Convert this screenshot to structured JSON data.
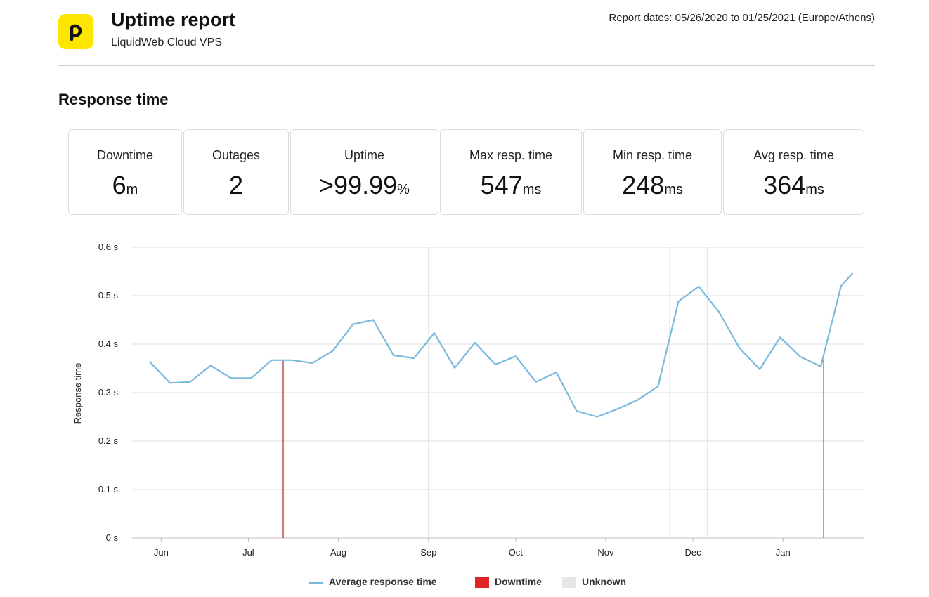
{
  "header": {
    "title": "Uptime report",
    "subtitle": "LiquidWeb Cloud VPS",
    "report_dates": "Report dates: 05/26/2020 to 01/25/2021 (Europe/Athens)",
    "logo_icon": "p-logo-icon",
    "logo_color": "#ffe600"
  },
  "section": {
    "title": "Response time"
  },
  "stats": [
    {
      "label": "Downtime",
      "value": "6",
      "unit": "m"
    },
    {
      "label": "Outages",
      "value": "2",
      "unit": ""
    },
    {
      "label": "Uptime",
      "value": ">99.99",
      "unit": "%"
    },
    {
      "label": "Max resp. time",
      "value": "547",
      "unit": "ms"
    },
    {
      "label": "Min resp. time",
      "value": "248",
      "unit": "ms"
    },
    {
      "label": "Avg resp. time",
      "value": "364",
      "unit": "ms"
    }
  ],
  "chart_data": {
    "type": "line",
    "xlabel": "",
    "ylabel": "Response time",
    "xlim": [
      "2020-05-26",
      "2021-01-25"
    ],
    "ylim": [
      0,
      0.6
    ],
    "yticks": [
      0,
      0.1,
      0.2,
      0.3,
      0.4,
      0.5,
      0.6
    ],
    "yticks_labels": [
      "0 s",
      "0.1 s",
      "0.2 s",
      "0.3 s",
      "0.4 s",
      "0.5 s",
      "0.6 s"
    ],
    "xticks": [
      "Jun",
      "Jul",
      "Aug",
      "Sep",
      "Oct",
      "Nov",
      "Dec",
      "Jan"
    ],
    "xtick_dates": [
      "2020-06-01",
      "2020-07-01",
      "2020-08-01",
      "2020-09-01",
      "2020-10-01",
      "2020-11-01",
      "2020-12-01",
      "2021-01-01"
    ],
    "grid": true,
    "legend_position": "bottom",
    "series": [
      {
        "name": "Average response time",
        "color": "#7ab9dd",
        "x": [
          "2020-05-28",
          "2020-06-04",
          "2020-06-11",
          "2020-06-18",
          "2020-06-25",
          "2020-07-02",
          "2020-07-09",
          "2020-07-16",
          "2020-07-23",
          "2020-07-30",
          "2020-08-06",
          "2020-08-13",
          "2020-08-20",
          "2020-08-27",
          "2020-09-03",
          "2020-09-10",
          "2020-09-17",
          "2020-09-24",
          "2020-10-01",
          "2020-10-08",
          "2020-10-15",
          "2020-10-22",
          "2020-10-29",
          "2020-11-05",
          "2020-11-12",
          "2020-11-19",
          "2020-11-26",
          "2020-12-03",
          "2020-12-10",
          "2020-12-17",
          "2020-12-24",
          "2020-12-31",
          "2021-01-07",
          "2021-01-14",
          "2021-01-21",
          "2021-01-25"
        ],
        "y": [
          0.364,
          0.32,
          0.322,
          0.356,
          0.33,
          0.33,
          0.367,
          0.367,
          0.361,
          0.386,
          0.441,
          0.45,
          0.377,
          0.371,
          0.423,
          0.351,
          0.403,
          0.358,
          0.375,
          0.322,
          0.342,
          0.262,
          0.25,
          0.266,
          0.285,
          0.313,
          0.488,
          0.519,
          0.466,
          0.392,
          0.348,
          0.414,
          0.374,
          0.354,
          0.52,
          0.547
        ]
      },
      {
        "name": "Downtime",
        "color": "#e02424",
        "x": [
          "2020-07-13",
          "2021-01-15"
        ]
      },
      {
        "name": "Unknown",
        "color": "#e6e6e6",
        "x": [
          "2020-09-01",
          "2020-11-23",
          "2020-12-06"
        ]
      }
    ]
  }
}
